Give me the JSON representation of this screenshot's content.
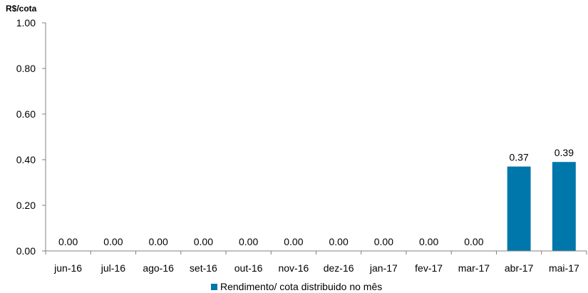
{
  "chart_data": {
    "type": "bar",
    "categories": [
      "jun-16",
      "jul-16",
      "ago-16",
      "set-16",
      "out-16",
      "nov-16",
      "dez-16",
      "jan-17",
      "fev-17",
      "mar-17",
      "abr-17",
      "mai-17"
    ],
    "series": [
      {
        "name": "Rendimento/ cota distribuido no mês",
        "values": [
          0.0,
          0.0,
          0.0,
          0.0,
          0.0,
          0.0,
          0.0,
          0.0,
          0.0,
          0.0,
          0.37,
          0.39
        ],
        "data_labels": [
          "0.00",
          "0.00",
          "0.00",
          "0.00",
          "0.00",
          "0.00",
          "0.00",
          "0.00",
          "0.00",
          "0.00",
          "0.37",
          "0.39"
        ],
        "color": "#0077AA"
      }
    ],
    "yticks": [
      "0.00",
      "0.20",
      "0.40",
      "0.60",
      "0.80",
      "1.00"
    ],
    "ylabel": "R$/cota",
    "ylim": [
      0,
      1
    ],
    "grid": false,
    "legend": "bottom-center"
  }
}
